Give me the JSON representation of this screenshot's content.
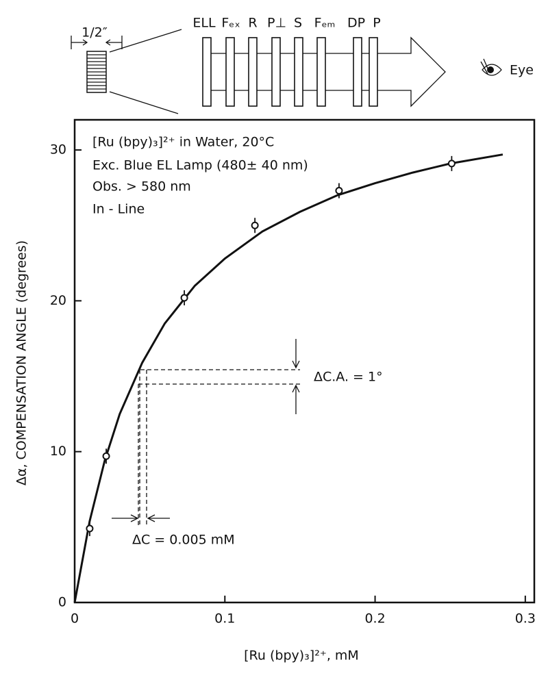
{
  "chart_data": {
    "type": "scatter",
    "x_label": "[Ru (bpy)₃]²⁺, mM",
    "y_label": "Δα, COMPENSATION ANGLE (degrees)",
    "annotations": [
      "[Ru (bpy)₃]²⁺ in Water, 20°C",
      "Exc. Blue EL Lamp (480± 40 nm)",
      "Obs. > 580 nm",
      "In - Line"
    ],
    "delta_ca": "ΔC.A. = 1°",
    "delta_c": "ΔC = 0.005 mM",
    "points": {
      "x": [
        0.01,
        0.021,
        0.073,
        0.12,
        0.176,
        0.251
      ],
      "values": [
        4.9,
        9.7,
        20.2,
        25.0,
        27.3,
        29.1
      ],
      "errors": [
        0.5,
        0.5,
        0.5,
        0.5,
        0.5,
        0.5
      ],
      "color": "#111111"
    },
    "curve": {
      "x": [
        0,
        0.01,
        0.02,
        0.03,
        0.045,
        0.06,
        0.08,
        0.1,
        0.125,
        0.15,
        0.175,
        0.2,
        0.225,
        0.25,
        0.285
      ],
      "values": [
        0,
        5.4,
        9.4,
        12.5,
        15.9,
        18.5,
        21.0,
        22.8,
        24.6,
        25.9,
        27.0,
        27.8,
        28.5,
        29.1,
        29.7
      ],
      "color": "#111111"
    },
    "xlim": [
      0,
      0.306
    ],
    "ylim": [
      0,
      32
    ],
    "xticks": [
      0,
      0.1,
      0.2,
      0.3
    ],
    "yticks": [
      0,
      10,
      20,
      30
    ]
  },
  "diagram": {
    "width_label": "1/2″",
    "labels": [
      "ELL",
      "Fₑₓ",
      "R",
      "P⊥",
      "S",
      "Fₑₘ",
      "DP",
      "P"
    ],
    "eye": "Eye"
  }
}
